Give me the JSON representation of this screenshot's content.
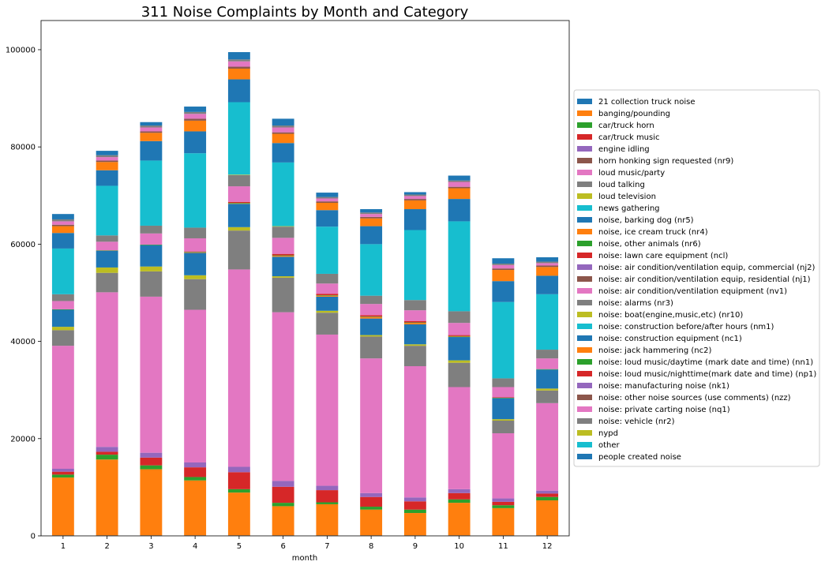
{
  "chart_data": {
    "type": "bar",
    "stacked": true,
    "title": "311 Noise Complaints by Month and Category",
    "xlabel": "month",
    "ylabel": "",
    "ylim": [
      0,
      106000
    ],
    "yticks": [
      0,
      20000,
      40000,
      60000,
      80000,
      100000
    ],
    "grid": false,
    "legend_position": "right",
    "categories": [
      "1",
      "2",
      "3",
      "4",
      "5",
      "6",
      "7",
      "8",
      "9",
      "10",
      "11",
      "12"
    ],
    "series": [
      {
        "name": "21 collection truck noise",
        "color": "#1f77b4",
        "values": [
          100,
          100,
          100,
          100,
          100,
          100,
          100,
          100,
          100,
          100,
          100,
          100
        ]
      },
      {
        "name": "banging/pounding",
        "color": "#ff7f0e",
        "values": [
          11900,
          15600,
          13600,
          11300,
          8800,
          6000,
          6400,
          5300,
          4600,
          6700,
          5600,
          7200
        ]
      },
      {
        "name": "car/truck horn",
        "color": "#2ca02c",
        "values": [
          600,
          1000,
          800,
          700,
          700,
          700,
          400,
          600,
          700,
          700,
          600,
          700
        ]
      },
      {
        "name": "car/truck music",
        "color": "#d62728",
        "values": [
          600,
          600,
          1600,
          2000,
          3500,
          3300,
          2500,
          2000,
          1700,
          1300,
          700,
          700
        ]
      },
      {
        "name": "engine idling",
        "color": "#9467bd",
        "values": [
          600,
          1000,
          1000,
          1000,
          1100,
          1200,
          900,
          800,
          800,
          800,
          700,
          600
        ]
      },
      {
        "name": "horn honking sign requested (nr9)",
        "color": "#8c564b",
        "values": [
          0,
          0,
          0,
          0,
          0,
          0,
          0,
          0,
          0,
          0,
          0,
          0
        ]
      },
      {
        "name": "loud music/party",
        "color": "#e377c2",
        "values": [
          25300,
          31800,
          32100,
          31400,
          40600,
          34700,
          31100,
          27700,
          27000,
          21000,
          13400,
          18000
        ]
      },
      {
        "name": "loud talking",
        "color": "#7f7f7f",
        "values": [
          3200,
          4000,
          5200,
          6300,
          8000,
          7100,
          4500,
          4500,
          4200,
          5000,
          2600,
          2600
        ]
      },
      {
        "name": "loud television",
        "color": "#bcbd22",
        "values": [
          700,
          1100,
          1000,
          800,
          700,
          300,
          400,
          300,
          300,
          500,
          300,
          400
        ]
      },
      {
        "name": "news gathering",
        "color": "#17becf",
        "values": [
          0,
          0,
          0,
          0,
          0,
          0,
          0,
          0,
          0,
          0,
          0,
          0
        ]
      },
      {
        "name": "noise, barking dog (nr5)",
        "color": "#1f77b4",
        "values": [
          3500,
          3400,
          4400,
          4600,
          4800,
          4000,
          2900,
          3400,
          4100,
          4800,
          4300,
          3900
        ]
      },
      {
        "name": "noise, ice cream truck (nr4)",
        "color": "#ff7f0e",
        "values": [
          0,
          0,
          0,
          100,
          100,
          200,
          200,
          300,
          300,
          100,
          0,
          0
        ]
      },
      {
        "name": "noise, other animals (nr6)",
        "color": "#2ca02c",
        "values": [
          100,
          100,
          100,
          100,
          100,
          100,
          100,
          100,
          100,
          100,
          100,
          100
        ]
      },
      {
        "name": "noise:  lawn care equipment (ncl)",
        "color": "#d62728",
        "values": [
          0,
          0,
          0,
          100,
          200,
          300,
          300,
          300,
          300,
          200,
          100,
          0
        ]
      },
      {
        "name": "noise: air condition/ventilation equip, commercial (nj2)",
        "color": "#9467bd",
        "values": [
          0,
          0,
          0,
          0,
          0,
          0,
          0,
          0,
          0,
          0,
          0,
          0
        ]
      },
      {
        "name": "noise: air condition/ventilation equip, residential (nj1)",
        "color": "#8c564b",
        "values": [
          0,
          0,
          0,
          0,
          0,
          0,
          0,
          0,
          0,
          0,
          0,
          0
        ]
      },
      {
        "name": "noise: air condition/ventilation equipment (nv1)",
        "color": "#e377c2",
        "values": [
          1700,
          1800,
          2300,
          2700,
          3200,
          3300,
          2100,
          2300,
          2200,
          2500,
          2100,
          2200
        ]
      },
      {
        "name": "noise: alarms (nr3)",
        "color": "#7f7f7f",
        "values": [
          1400,
          1300,
          1600,
          2200,
          2300,
          2300,
          2000,
          1700,
          2100,
          2400,
          1800,
          1800
        ]
      },
      {
        "name": "noise: boat(engine,music,etc) (nr10)",
        "color": "#bcbd22",
        "values": [
          0,
          0,
          0,
          0,
          100,
          100,
          0,
          0,
          0,
          0,
          0,
          0
        ]
      },
      {
        "name": "noise: construction before/after hours (nm1)",
        "color": "#17becf",
        "values": [
          9400,
          10200,
          13400,
          15300,
          14900,
          13100,
          9700,
          10600,
          14400,
          18500,
          15700,
          11400
        ]
      },
      {
        "name": "noise: construction equipment (nc1)",
        "color": "#1f77b4",
        "values": [
          3200,
          3200,
          4000,
          4500,
          4700,
          4000,
          3400,
          3700,
          4300,
          4600,
          4300,
          3800
        ]
      },
      {
        "name": "noise: jack hammering (nc2)",
        "color": "#ff7f0e",
        "values": [
          1400,
          1700,
          1700,
          2200,
          2200,
          1900,
          1500,
          1600,
          1800,
          2200,
          2300,
          1800
        ]
      },
      {
        "name": "noise: loud music/daytime (mark date and time) (nn1)",
        "color": "#2ca02c",
        "values": [
          0,
          0,
          0,
          0,
          0,
          0,
          0,
          0,
          0,
          0,
          0,
          0
        ]
      },
      {
        "name": "noise: loud music/nighttime(mark date and time) (np1)",
        "color": "#d62728",
        "values": [
          0,
          0,
          0,
          0,
          0,
          0,
          0,
          0,
          0,
          0,
          0,
          0
        ]
      },
      {
        "name": "noise: manufacturing noise (nk1)",
        "color": "#9467bd",
        "values": [
          0,
          0,
          0,
          0,
          0,
          0,
          0,
          0,
          0,
          0,
          0,
          0
        ]
      },
      {
        "name": "noise: other noise sources (use comments) (nzz)",
        "color": "#8c564b",
        "values": [
          300,
          300,
          300,
          400,
          400,
          300,
          300,
          300,
          300,
          300,
          300,
          300
        ]
      },
      {
        "name": "noise: private carting noise (nq1)",
        "color": "#e377c2",
        "values": [
          700,
          700,
          800,
          1000,
          1100,
          1000,
          600,
          600,
          600,
          1000,
          700,
          500
        ]
      },
      {
        "name": "noise: vehicle (nr2)",
        "color": "#7f7f7f",
        "values": [
          400,
          400,
          400,
          400,
          400,
          400,
          300,
          300,
          300,
          300,
          300,
          300
        ]
      },
      {
        "name": "nypd",
        "color": "#bcbd22",
        "values": [
          0,
          0,
          0,
          0,
          0,
          0,
          0,
          0,
          0,
          0,
          0,
          0
        ]
      },
      {
        "name": "other",
        "color": "#17becf",
        "values": [
          0,
          0,
          0,
          0,
          0,
          0,
          0,
          0,
          0,
          0,
          0,
          0
        ]
      },
      {
        "name": "people created noise",
        "color": "#1f77b4",
        "values": [
          1100,
          900,
          700,
          1100,
          1500,
          1400,
          900,
          700,
          500,
          1000,
          1100,
          900
        ]
      }
    ]
  }
}
